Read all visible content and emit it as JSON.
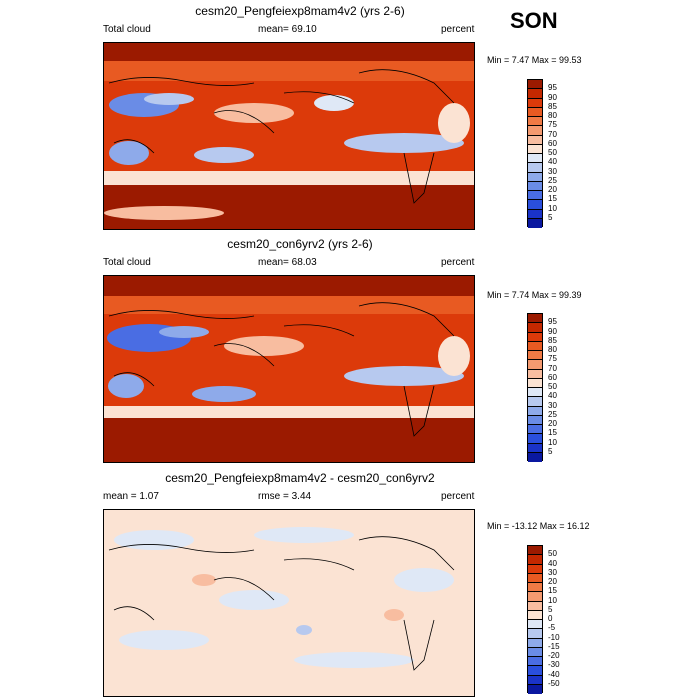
{
  "season": "SON",
  "panels": [
    {
      "title": "cesm20_Pengfeiexp8mam4v2 (yrs 2-6)",
      "left_label": "Total cloud",
      "center_label": "mean=  69.10",
      "right_label": "percent",
      "minmax": "Min =   7.47 Max =  99.53",
      "colorbar_labels": [
        "95",
        "90",
        "85",
        "80",
        "75",
        "70",
        "60",
        "50",
        "40",
        "30",
        "25",
        "20",
        "15",
        "10",
        "5"
      ],
      "colorbar_colors": [
        "#9b1a00",
        "#c42800",
        "#dc3a0a",
        "#e85a22",
        "#f07a45",
        "#f49a70",
        "#f8bda0",
        "#fbe3d3",
        "#dfe8f6",
        "#b7c9ef",
        "#8eaaea",
        "#6a8ce6",
        "#4a6de3",
        "#2a4fdd",
        "#1a33c8",
        "#0a18a0"
      ]
    },
    {
      "title": "cesm20_con6yrv2 (yrs 2-6)",
      "left_label": "Total cloud",
      "center_label": "mean=  68.03",
      "right_label": "percent",
      "minmax": "Min =   7.74 Max =  99.39",
      "colorbar_labels": [
        "95",
        "90",
        "85",
        "80",
        "75",
        "70",
        "60",
        "50",
        "40",
        "30",
        "25",
        "20",
        "15",
        "10",
        "5"
      ],
      "colorbar_colors": [
        "#9b1a00",
        "#c42800",
        "#dc3a0a",
        "#e85a22",
        "#f07a45",
        "#f49a70",
        "#f8bda0",
        "#fbe3d3",
        "#dfe8f6",
        "#b7c9ef",
        "#8eaaea",
        "#6a8ce6",
        "#4a6de3",
        "#2a4fdd",
        "#1a33c8",
        "#0a18a0"
      ]
    },
    {
      "title": "cesm20_Pengfeiexp8mam4v2 - cesm20_con6yrv2",
      "left_label": "mean =   1.07",
      "center_label": "rmse =   3.44",
      "right_label": "percent",
      "minmax": "Min = -13.12 Max =  16.12",
      "colorbar_labels": [
        "50",
        "40",
        "30",
        "20",
        "15",
        "10",
        "5",
        "0",
        "-5",
        "-10",
        "-15",
        "-20",
        "-30",
        "-40",
        "-50"
      ],
      "colorbar_colors": [
        "#9b1a00",
        "#c42800",
        "#dc3a0a",
        "#e85a22",
        "#f07a45",
        "#f49a70",
        "#f8bda0",
        "#fbe3d3",
        "#dfe8f6",
        "#b7c9ef",
        "#8eaaea",
        "#6a8ce6",
        "#4a6de3",
        "#2a4fdd",
        "#1a33c8",
        "#0a18a0"
      ]
    }
  ]
}
